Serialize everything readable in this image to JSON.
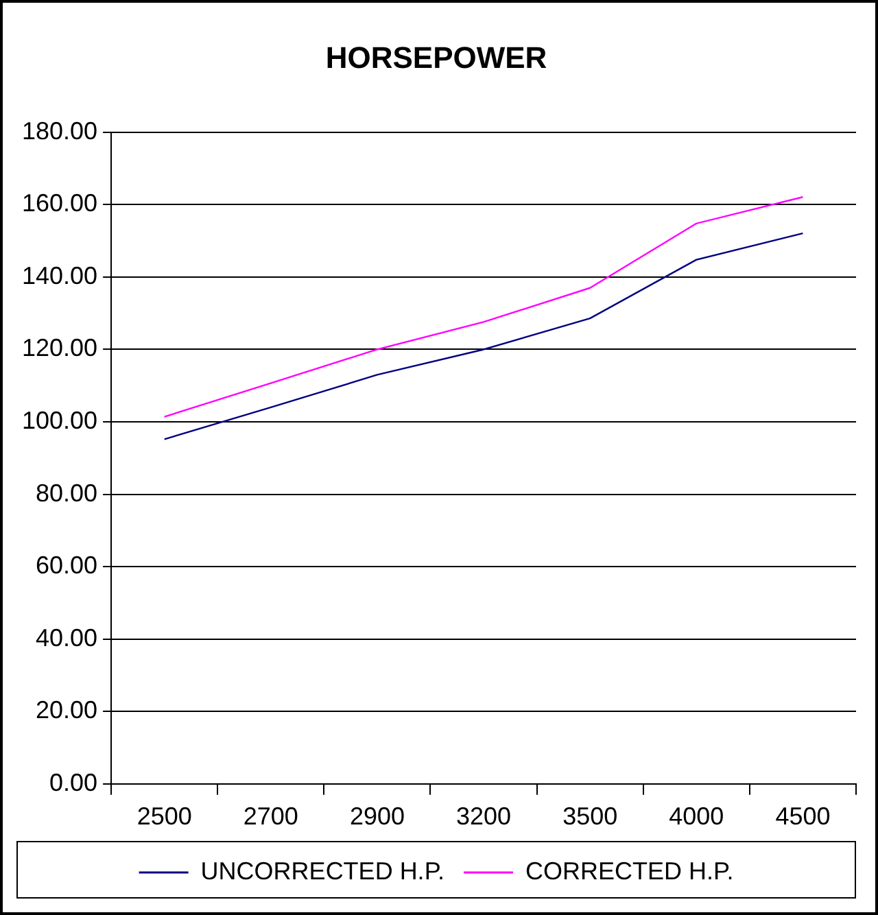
{
  "chart_data": {
    "type": "line",
    "title": "HORSEPOWER",
    "categories": [
      "2500",
      "2700",
      "2900",
      "3200",
      "3500",
      "4000",
      "4500"
    ],
    "series": [
      {
        "name": "UNCORRECTED H.P.",
        "color": "#000080",
        "values": [
          95.2,
          104,
          113,
          120,
          128.6,
          144.8,
          152.1
        ]
      },
      {
        "name": "CORRECTED H.P.",
        "color": "#ff00ff",
        "values": [
          101.4,
          110.7,
          120,
          127.6,
          137,
          154.8,
          162.1
        ]
      }
    ],
    "ylim": [
      0,
      180
    ],
    "yticks": [
      {
        "value": 0,
        "label": "0.00"
      },
      {
        "value": 20,
        "label": "20.00"
      },
      {
        "value": 40,
        "label": "40.00"
      },
      {
        "value": 60,
        "label": "60.00"
      },
      {
        "value": 80,
        "label": "80.00"
      },
      {
        "value": 100,
        "label": "100.00"
      },
      {
        "value": 120,
        "label": "120.00"
      },
      {
        "value": 140,
        "label": "140.00"
      },
      {
        "value": 160,
        "label": "160.00"
      },
      {
        "value": 180,
        "label": "180.00"
      }
    ],
    "grid": "y",
    "legend": "bottom",
    "marker": "none",
    "line_style": "solid"
  }
}
